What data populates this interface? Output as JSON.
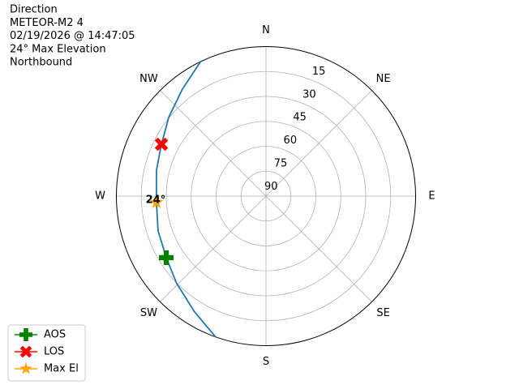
{
  "chart_data": {
    "type": "polar",
    "title_lines": [
      "Direction",
      "METEOR-M2 4",
      "02/19/2026 @ 14:47:05",
      "24° Max Elevation",
      "Northbound"
    ],
    "theta_zero": "N",
    "theta_direction": "clockwise",
    "rlim": [
      90,
      0
    ],
    "rticks": [
      15,
      30,
      45,
      60,
      75,
      90
    ],
    "thetaticks": [
      {
        "value": 0,
        "label": "N"
      },
      {
        "value": 45,
        "label": "NE"
      },
      {
        "value": 90,
        "label": "E"
      },
      {
        "value": 135,
        "label": "SE"
      },
      {
        "value": 180,
        "label": "S"
      },
      {
        "value": 225,
        "label": "SW"
      },
      {
        "value": 270,
        "label": "W"
      },
      {
        "value": 315,
        "label": "NW"
      }
    ],
    "grid": true,
    "track": {
      "color": "#1f77b4",
      "azimuth": [
        199.7,
        211.6,
        225.5,
        238.3,
        252.1,
        266.7,
        283.3,
        296.4,
        309.0,
        322.0,
        334.1
      ],
      "elevation": [
        0,
        8.1,
        14.8,
        19.5,
        21.8,
        24,
        22.3,
        19.8,
        14.7,
        8.3,
        0
      ]
    },
    "series": [
      {
        "name": "AOS",
        "color": "#008000",
        "marker": "P",
        "azimuth": [
          238.3
        ],
        "elevation": [
          19.5
        ]
      },
      {
        "name": "LOS",
        "color": "#ff0000",
        "marker": "X",
        "azimuth": [
          296.4
        ],
        "elevation": [
          19.8
        ]
      },
      {
        "name": "Max El",
        "color": "#ffa500",
        "marker": "*",
        "azimuth": [
          266.7
        ],
        "elevation": [
          24
        ]
      }
    ],
    "annotation": {
      "text": "24°",
      "series": 2
    },
    "legend": "lower left"
  }
}
